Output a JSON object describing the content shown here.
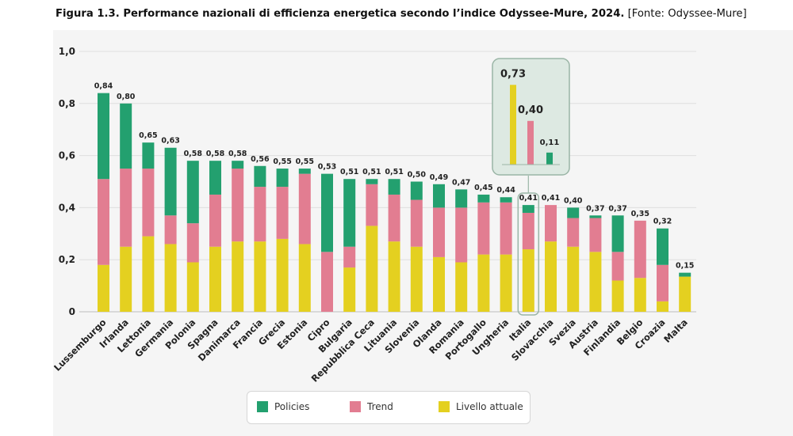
{
  "caption": {
    "lead": "Figura 1.3. Performance nazionali di efficienza energetica secondo l’indice Odyssee-Mure, 2024.",
    "source": " [Fonte:  Odyssee-Mure]"
  },
  "colors": {
    "Policies": "#23a06f",
    "Trend": "#e27d91",
    "Livello attuale": "#e4d020"
  },
  "chart_data": {
    "type": "bar",
    "stacked": true,
    "title": "",
    "xlabel": "",
    "ylabel": "",
    "ylim": [
      0,
      1.0
    ],
    "yticks": [
      "0",
      "0,2",
      "0,4",
      "0,6",
      "0,8",
      "1,0"
    ],
    "grid": true,
    "legend_position": "bottom",
    "highlight_category": "Italia",
    "categories": [
      "Lussemburgo",
      "Irlanda",
      "Lettonia",
      "Germania",
      "Polonia",
      "Spagna",
      "Danimarca",
      "Francia",
      "Grecia",
      "Estonia",
      "Cipro",
      "Bulgaria",
      "Repubblica Ceca",
      "Lituania",
      "Slovenia",
      "Olanda",
      "Romania",
      "Portogallo",
      "Ungheria",
      "Italia",
      "Slovacchia",
      "Svezia",
      "Austria",
      "Finlandia",
      "Belgio",
      "Croazia",
      "Malta"
    ],
    "totals": [
      "0,84",
      "0,80",
      "0,65",
      "0,63",
      "0,58",
      "0,58",
      "0,58",
      "0,56",
      "0,55",
      "0,55",
      "0,53",
      "0,51",
      "0,51",
      "0,51",
      "0,50",
      "0,49",
      "0,47",
      "0,45",
      "0,44",
      "0,41",
      "0,41",
      "0,40",
      "0,37",
      "0,37",
      "0,35",
      "0,32",
      "0,15"
    ],
    "series": [
      {
        "name": "Livello attuale",
        "values": [
          0.18,
          0.25,
          0.29,
          0.26,
          0.19,
          0.25,
          0.27,
          0.27,
          0.28,
          0.26,
          0.0,
          0.17,
          0.33,
          0.27,
          0.25,
          0.21,
          0.19,
          0.22,
          0.22,
          0.24,
          0.27,
          0.25,
          0.23,
          0.12,
          0.13,
          0.04,
          0.135
        ]
      },
      {
        "name": "Trend",
        "values": [
          0.33,
          0.3,
          0.26,
          0.11,
          0.15,
          0.2,
          0.28,
          0.21,
          0.2,
          0.27,
          0.23,
          0.08,
          0.16,
          0.18,
          0.18,
          0.19,
          0.21,
          0.2,
          0.2,
          0.14,
          0.14,
          0.11,
          0.13,
          0.11,
          0.22,
          0.14,
          0.0
        ]
      },
      {
        "name": "Policies",
        "values": [
          0.33,
          0.25,
          0.1,
          0.26,
          0.24,
          0.13,
          0.03,
          0.08,
          0.07,
          0.02,
          0.3,
          0.26,
          0.02,
          0.06,
          0.07,
          0.09,
          0.07,
          0.03,
          0.02,
          0.03,
          0.0,
          0.04,
          0.01,
          0.14,
          0.0,
          0.14,
          0.015
        ]
      }
    ],
    "inset": {
      "values": [
        0.73,
        0.4,
        0.11
      ],
      "labels": [
        "0,73",
        "0,40",
        "0,11"
      ]
    }
  },
  "legend": [
    {
      "name": "Policies",
      "label": "Policies"
    },
    {
      "name": "Trend",
      "label": "Trend"
    },
    {
      "name": "Livello attuale",
      "label": "Livello attuale"
    }
  ]
}
